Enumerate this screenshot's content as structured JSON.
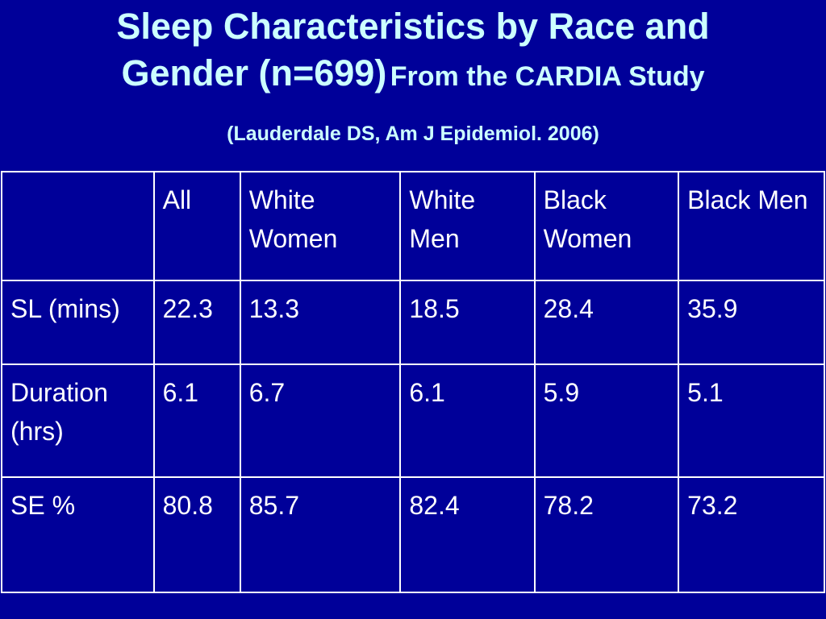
{
  "title": {
    "line1": "Sleep Characteristics by Race and",
    "line2_main": "Gender (n=699)",
    "line2_sub": "From the CARDIA Study",
    "citation": "(Lauderdale DS,  Am J Epidemiol. 2006)"
  },
  "table": {
    "headers": [
      "",
      "All",
      "White Women",
      "White Men",
      "Black Women",
      "Black Men"
    ],
    "rows": [
      {
        "label": "SL (mins)",
        "values": [
          "22.3",
          "13.3",
          "18.5",
          "28.4",
          "35.9"
        ]
      },
      {
        "label": "Duration (hrs)",
        "values": [
          "6.1",
          "6.7",
          "6.1",
          "5.9",
          "5.1"
        ]
      },
      {
        "label": "SE %",
        "values": [
          "80.8",
          "85.7",
          "82.4",
          "78.2",
          "73.2"
        ]
      }
    ]
  },
  "colors": {
    "background": "#000099",
    "title_text": "#ccffff",
    "table_text": "#ffffff",
    "border": "#ffffff"
  }
}
